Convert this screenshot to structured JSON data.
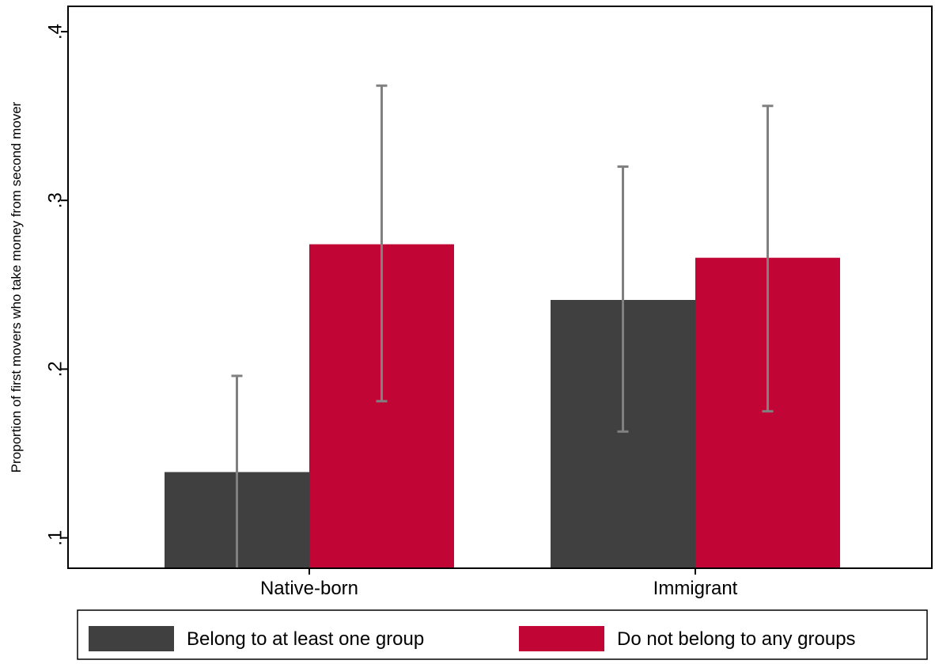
{
  "chart_data": {
    "type": "bar",
    "ylabel": "Proportion of first movers who take money from second mover",
    "categories": [
      "Native-born",
      "Immigrant"
    ],
    "series": [
      {
        "name": "Belong to at least one group",
        "color": "#404040",
        "values": [
          0.139,
          0.241
        ],
        "ci_low": [
          0.082,
          0.163
        ],
        "ci_high": [
          0.196,
          0.32
        ]
      },
      {
        "name": "Do not belong to any groups",
        "color": "#c10534",
        "values": [
          0.274,
          0.266
        ],
        "ci_low": [
          0.181,
          0.175
        ],
        "ci_high": [
          0.368,
          0.356
        ]
      }
    ],
    "yticks": [
      0.1,
      0.2,
      0.3,
      0.4
    ],
    "ytick_labels": [
      ".1",
      ".2",
      ".3",
      ".4"
    ],
    "ylim": [
      0.082,
      0.415
    ],
    "errorbar_color": "#808080",
    "grid": false,
    "legend_position": "bottom"
  }
}
